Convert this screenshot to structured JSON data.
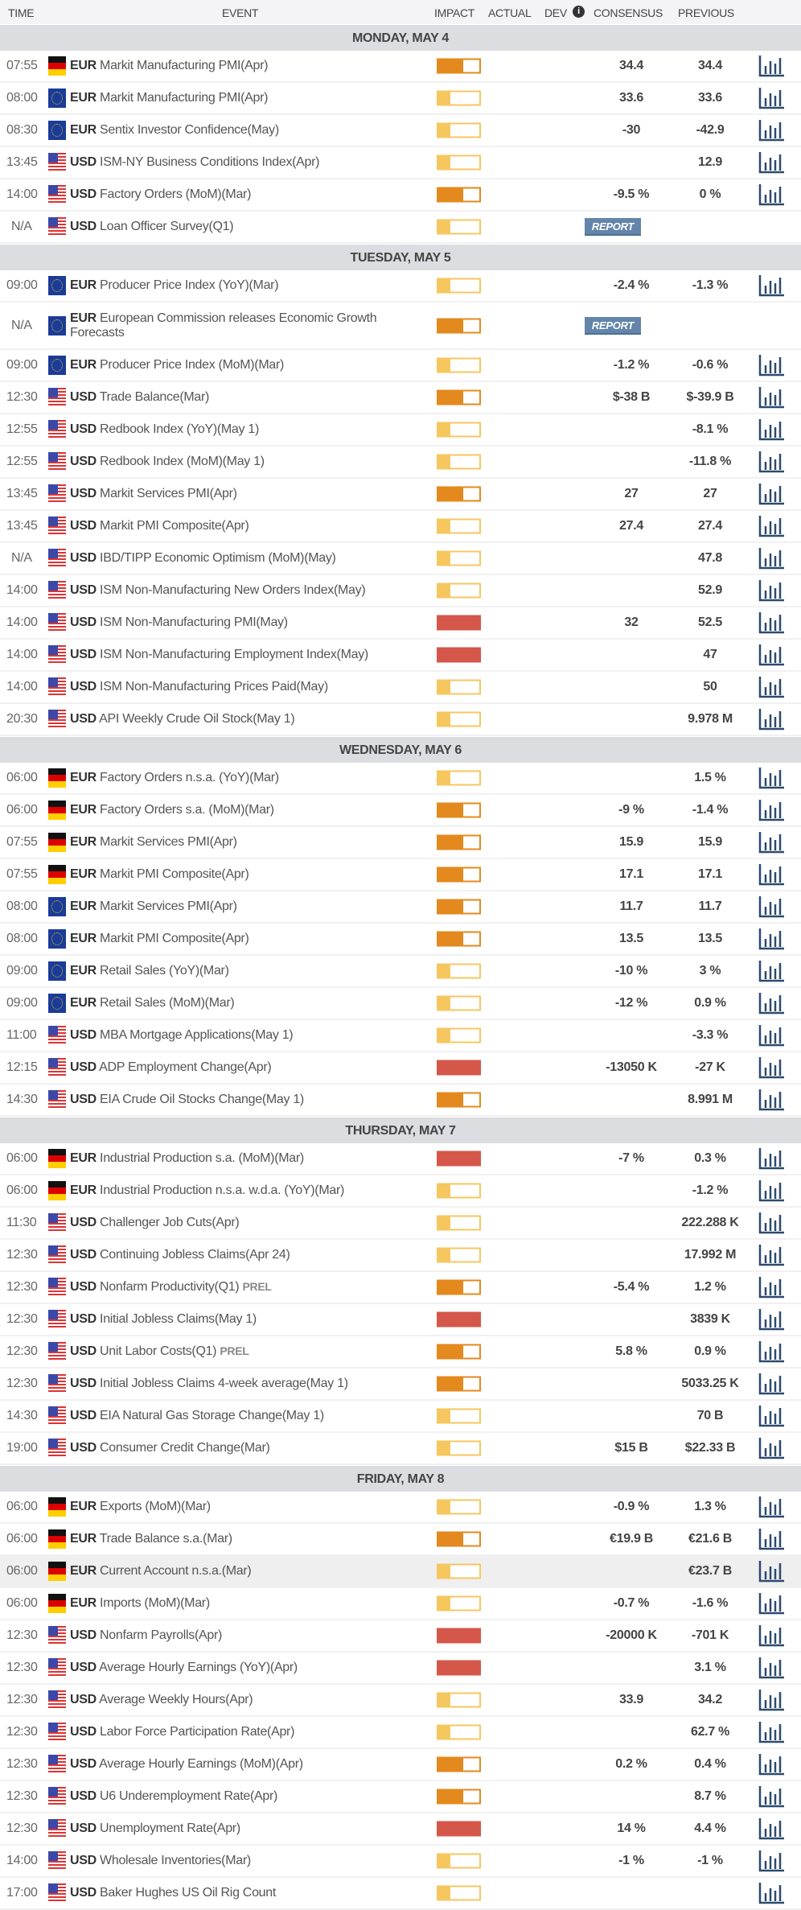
{
  "header": {
    "time": "TIME",
    "event": "EVENT",
    "impact": "IMPACT",
    "actual": "ACTUAL",
    "dev": "DEV",
    "info": "i",
    "consensus": "CONSENSUS",
    "previous": "PREVIOUS"
  },
  "report_label": "REPORT",
  "colors": {
    "impact_low": "#f6c75f",
    "impact_medium": "#e4891d",
    "impact_high": "#d5574a",
    "report": "#6385ab",
    "chart_icon": "#2c4a6e"
  },
  "days": [
    {
      "label": "MONDAY, MAY 4",
      "rows": [
        {
          "time": "07:55",
          "flag": "de",
          "cur": "EUR",
          "event": "Markit Manufacturing PMI(Apr)",
          "impact": "medium",
          "cons": "34.4",
          "prev": "34.4"
        },
        {
          "time": "08:00",
          "flag": "eu",
          "cur": "EUR",
          "event": "Markit Manufacturing PMI(Apr)",
          "impact": "low",
          "cons": "33.6",
          "prev": "33.6"
        },
        {
          "time": "08:30",
          "flag": "eu",
          "cur": "EUR",
          "event": "Sentix Investor Confidence(May)",
          "impact": "low",
          "cons": "-30",
          "prev": "-42.9"
        },
        {
          "time": "13:45",
          "flag": "us",
          "cur": "USD",
          "event": "ISM-NY Business Conditions Index(Apr)",
          "impact": "low",
          "cons": "",
          "prev": "12.9"
        },
        {
          "time": "14:00",
          "flag": "us",
          "cur": "USD",
          "event": "Factory Orders (MoM)(Mar)",
          "impact": "medium",
          "cons": "-9.5 %",
          "prev": "0 %"
        },
        {
          "time": "N/A",
          "flag": "us",
          "cur": "USD",
          "event": "Loan Officer Survey(Q1)",
          "impact": "low",
          "report": true
        }
      ]
    },
    {
      "label": "TUESDAY, MAY 5",
      "rows": [
        {
          "time": "09:00",
          "flag": "eu",
          "cur": "EUR",
          "event": "Producer Price Index (YoY)(Mar)",
          "impact": "low",
          "cons": "-2.4 %",
          "prev": "-1.3 %"
        },
        {
          "time": "N/A",
          "flag": "eu",
          "cur": "EUR",
          "event": "European Commission releases Economic Growth Forecasts",
          "impact": "medium",
          "report": true,
          "tall": true
        },
        {
          "time": "09:00",
          "flag": "eu",
          "cur": "EUR",
          "event": "Producer Price Index (MoM)(Mar)",
          "impact": "low",
          "cons": "-1.2 %",
          "prev": "-0.6 %"
        },
        {
          "time": "12:30",
          "flag": "us",
          "cur": "USD",
          "event": "Trade Balance(Mar)",
          "impact": "medium",
          "cons": "$-38 B",
          "prev": "$-39.9 B"
        },
        {
          "time": "12:55",
          "flag": "us",
          "cur": "USD",
          "event": "Redbook Index (YoY)(May 1)",
          "impact": "low",
          "cons": "",
          "prev": "-8.1 %"
        },
        {
          "time": "12:55",
          "flag": "us",
          "cur": "USD",
          "event": "Redbook Index (MoM)(May 1)",
          "impact": "low",
          "cons": "",
          "prev": "-11.8 %"
        },
        {
          "time": "13:45",
          "flag": "us",
          "cur": "USD",
          "event": "Markit Services PMI(Apr)",
          "impact": "medium",
          "cons": "27",
          "prev": "27"
        },
        {
          "time": "13:45",
          "flag": "us",
          "cur": "USD",
          "event": "Markit PMI Composite(Apr)",
          "impact": "low",
          "cons": "27.4",
          "prev": "27.4"
        },
        {
          "time": "N/A",
          "flag": "us",
          "cur": "USD",
          "event": "IBD/TIPP Economic Optimism (MoM)(May)",
          "impact": "low",
          "cons": "",
          "prev": "47.8"
        },
        {
          "time": "14:00",
          "flag": "us",
          "cur": "USD",
          "event": "ISM Non-Manufacturing New Orders Index(May)",
          "impact": "low",
          "cons": "",
          "prev": "52.9"
        },
        {
          "time": "14:00",
          "flag": "us",
          "cur": "USD",
          "event": "ISM Non-Manufacturing PMI(May)",
          "impact": "high",
          "cons": "32",
          "prev": "52.5"
        },
        {
          "time": "14:00",
          "flag": "us",
          "cur": "USD",
          "event": "ISM Non-Manufacturing Employment Index(May)",
          "impact": "high",
          "cons": "",
          "prev": "47"
        },
        {
          "time": "14:00",
          "flag": "us",
          "cur": "USD",
          "event": "ISM Non-Manufacturing Prices Paid(May)",
          "impact": "low",
          "cons": "",
          "prev": "50"
        },
        {
          "time": "20:30",
          "flag": "us",
          "cur": "USD",
          "event": "API Weekly Crude Oil Stock(May 1)",
          "impact": "low",
          "cons": "",
          "prev": "9.978 M"
        }
      ]
    },
    {
      "label": "WEDNESDAY, MAY 6",
      "rows": [
        {
          "time": "06:00",
          "flag": "de",
          "cur": "EUR",
          "event": "Factory Orders n.s.a. (YoY)(Mar)",
          "impact": "low",
          "cons": "",
          "prev": "1.5 %"
        },
        {
          "time": "06:00",
          "flag": "de",
          "cur": "EUR",
          "event": "Factory Orders s.a. (MoM)(Mar)",
          "impact": "medium",
          "cons": "-9 %",
          "prev": "-1.4 %"
        },
        {
          "time": "07:55",
          "flag": "de",
          "cur": "EUR",
          "event": "Markit Services PMI(Apr)",
          "impact": "medium",
          "cons": "15.9",
          "prev": "15.9"
        },
        {
          "time": "07:55",
          "flag": "de",
          "cur": "EUR",
          "event": "Markit PMI Composite(Apr)",
          "impact": "medium",
          "cons": "17.1",
          "prev": "17.1"
        },
        {
          "time": "08:00",
          "flag": "eu",
          "cur": "EUR",
          "event": "Markit Services PMI(Apr)",
          "impact": "medium",
          "cons": "11.7",
          "prev": "11.7"
        },
        {
          "time": "08:00",
          "flag": "eu",
          "cur": "EUR",
          "event": "Markit PMI Composite(Apr)",
          "impact": "medium",
          "cons": "13.5",
          "prev": "13.5"
        },
        {
          "time": "09:00",
          "flag": "eu",
          "cur": "EUR",
          "event": "Retail Sales (YoY)(Mar)",
          "impact": "low",
          "cons": "-10 %",
          "prev": "3 %"
        },
        {
          "time": "09:00",
          "flag": "eu",
          "cur": "EUR",
          "event": "Retail Sales (MoM)(Mar)",
          "impact": "low",
          "cons": "-12 %",
          "prev": "0.9 %"
        },
        {
          "time": "11:00",
          "flag": "us",
          "cur": "USD",
          "event": "MBA Mortgage Applications(May 1)",
          "impact": "low",
          "cons": "",
          "prev": "-3.3 %"
        },
        {
          "time": "12:15",
          "flag": "us",
          "cur": "USD",
          "event": "ADP Employment Change(Apr)",
          "impact": "high",
          "cons": "-13050 K",
          "prev": "-27 K"
        },
        {
          "time": "14:30",
          "flag": "us",
          "cur": "USD",
          "event": "EIA Crude Oil Stocks Change(May 1)",
          "impact": "medium",
          "cons": "",
          "prev": "8.991 M"
        }
      ]
    },
    {
      "label": "THURSDAY, MAY 7",
      "rows": [
        {
          "time": "06:00",
          "flag": "de",
          "cur": "EUR",
          "event": "Industrial Production s.a. (MoM)(Mar)",
          "impact": "high",
          "cons": "-7 %",
          "prev": "0.3 %"
        },
        {
          "time": "06:00",
          "flag": "de",
          "cur": "EUR",
          "event": "Industrial Production n.s.a. w.d.a. (YoY)(Mar)",
          "impact": "low",
          "cons": "",
          "prev": "-1.2 %"
        },
        {
          "time": "11:30",
          "flag": "us",
          "cur": "USD",
          "event": "Challenger Job Cuts(Apr)",
          "impact": "low",
          "cons": "",
          "prev": "222.288 K"
        },
        {
          "time": "12:30",
          "flag": "us",
          "cur": "USD",
          "event": "Continuing Jobless Claims(Apr 24)",
          "impact": "low",
          "cons": "",
          "prev": "17.992 M"
        },
        {
          "time": "12:30",
          "flag": "us",
          "cur": "USD",
          "event": "Nonfarm Productivity(Q1)",
          "tag": "PREL",
          "impact": "medium",
          "cons": "-5.4 %",
          "prev": "1.2 %"
        },
        {
          "time": "12:30",
          "flag": "us",
          "cur": "USD",
          "event": "Initial Jobless Claims(May 1)",
          "impact": "high",
          "cons": "",
          "prev": "3839 K"
        },
        {
          "time": "12:30",
          "flag": "us",
          "cur": "USD",
          "event": "Unit Labor Costs(Q1)",
          "tag": "PREL",
          "impact": "medium",
          "cons": "5.8 %",
          "prev": "0.9 %"
        },
        {
          "time": "12:30",
          "flag": "us",
          "cur": "USD",
          "event": "Initial Jobless Claims 4-week average(May 1)",
          "impact": "medium",
          "cons": "",
          "prev": "5033.25 K"
        },
        {
          "time": "14:30",
          "flag": "us",
          "cur": "USD",
          "event": "EIA Natural Gas Storage Change(May 1)",
          "impact": "low",
          "cons": "",
          "prev": "70 B"
        },
        {
          "time": "19:00",
          "flag": "us",
          "cur": "USD",
          "event": "Consumer Credit Change(Mar)",
          "impact": "low",
          "cons": "$15 B",
          "prev": "$22.33 B"
        }
      ]
    },
    {
      "label": "FRIDAY, MAY 8",
      "rows": [
        {
          "time": "06:00",
          "flag": "de",
          "cur": "EUR",
          "event": "Exports (MoM)(Mar)",
          "impact": "low",
          "cons": "-0.9 %",
          "prev": "1.3 %"
        },
        {
          "time": "06:00",
          "flag": "de",
          "cur": "EUR",
          "event": "Trade Balance s.a.(Mar)",
          "impact": "medium",
          "cons": "€19.9 B",
          "prev": "€21.6 B"
        },
        {
          "time": "06:00",
          "flag": "de",
          "cur": "EUR",
          "event": "Current Account n.s.a.(Mar)",
          "impact": "low",
          "cons": "",
          "prev": "€23.7 B",
          "highlight": true
        },
        {
          "time": "06:00",
          "flag": "de",
          "cur": "EUR",
          "event": "Imports (MoM)(Mar)",
          "impact": "low",
          "cons": "-0.7 %",
          "prev": "-1.6 %"
        },
        {
          "time": "12:30",
          "flag": "us",
          "cur": "USD",
          "event": "Nonfarm Payrolls(Apr)",
          "impact": "high",
          "cons": "-20000 K",
          "prev": "-701 K"
        },
        {
          "time": "12:30",
          "flag": "us",
          "cur": "USD",
          "event": "Average Hourly Earnings (YoY)(Apr)",
          "impact": "high",
          "cons": "",
          "prev": "3.1 %"
        },
        {
          "time": "12:30",
          "flag": "us",
          "cur": "USD",
          "event": "Average Weekly Hours(Apr)",
          "impact": "low",
          "cons": "33.9",
          "prev": "34.2"
        },
        {
          "time": "12:30",
          "flag": "us",
          "cur": "USD",
          "event": "Labor Force Participation Rate(Apr)",
          "impact": "low",
          "cons": "",
          "prev": "62.7 %"
        },
        {
          "time": "12:30",
          "flag": "us",
          "cur": "USD",
          "event": "Average Hourly Earnings (MoM)(Apr)",
          "impact": "medium",
          "cons": "0.2 %",
          "prev": "0.4 %"
        },
        {
          "time": "12:30",
          "flag": "us",
          "cur": "USD",
          "event": "U6 Underemployment Rate(Apr)",
          "impact": "medium",
          "cons": "",
          "prev": "8.7 %"
        },
        {
          "time": "12:30",
          "flag": "us",
          "cur": "USD",
          "event": "Unemployment Rate(Apr)",
          "impact": "high",
          "cons": "14 %",
          "prev": "4.4 %"
        },
        {
          "time": "14:00",
          "flag": "us",
          "cur": "USD",
          "event": "Wholesale Inventories(Mar)",
          "impact": "low",
          "cons": "-1 %",
          "prev": "-1 %"
        },
        {
          "time": "17:00",
          "flag": "us",
          "cur": "USD",
          "event": "Baker Hughes US Oil Rig Count",
          "impact": "low",
          "cons": "",
          "prev": ""
        }
      ]
    }
  ]
}
